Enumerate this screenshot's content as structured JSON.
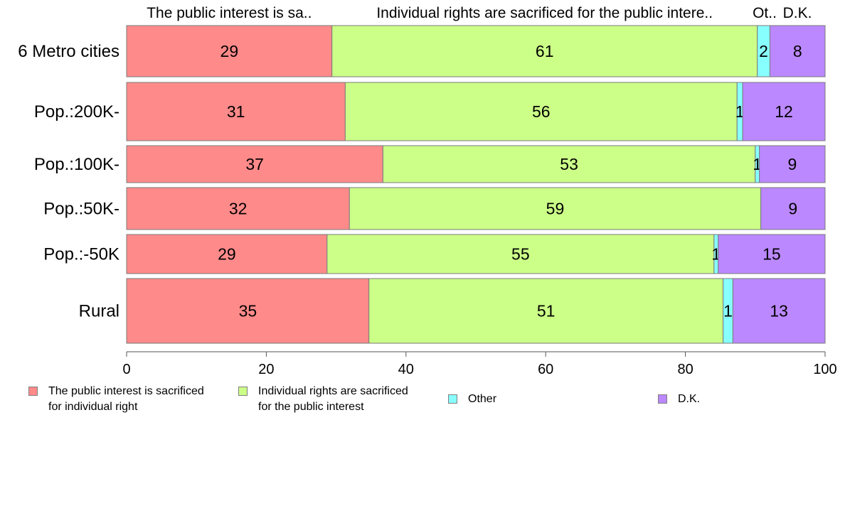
{
  "chart_data": {
    "type": "bar",
    "orientation": "horizontal",
    "stacked": true,
    "categories": [
      "6 Metro cities",
      "Pop.:200K-",
      "Pop.:100K-",
      "Pop.:50K-",
      "Pop.:-50K",
      "Rural"
    ],
    "series": [
      {
        "name": "The public interest is sacrificed for individual right",
        "header": "The public interest is sa..",
        "color": "#FF8A8A",
        "values": [
          29.4,
          31.3,
          36.7,
          31.9,
          28.7,
          34.7
        ],
        "labels": [
          "29",
          "31",
          "37",
          "32",
          "29",
          "35"
        ]
      },
      {
        "name": "Individual rights are sacrificed for the public interest",
        "header": "Individual rights are sacrificed for the public intere..",
        "color": "#CCFF88",
        "values": [
          60.9,
          56.1,
          53.3,
          58.9,
          55.4,
          50.7
        ],
        "labels": [
          "61",
          "56",
          "53",
          "59",
          "55",
          "51"
        ]
      },
      {
        "name": "Other",
        "header": "Ot..",
        "color": "#88FFFF",
        "values": [
          1.8,
          0.8,
          0.6,
          0.0,
          0.6,
          1.4
        ],
        "labels": [
          "2",
          "1",
          "1",
          "",
          "1",
          "1"
        ]
      },
      {
        "name": "D.K.",
        "header": "D.K.",
        "color": "#BB88FF",
        "values": [
          7.9,
          11.8,
          9.4,
          9.2,
          15.3,
          13.2
        ],
        "labels": [
          "8",
          "12",
          "9",
          "9",
          "15",
          "13"
        ]
      }
    ],
    "xlim": [
      0,
      100
    ],
    "xticks": [
      "0",
      "20",
      "40",
      "60",
      "80",
      "100"
    ],
    "grid": false,
    "legend_position": "bottom"
  },
  "legend": [
    {
      "label": "The public interest is sacrificed\nfor individual right",
      "color": "#FF8A8A"
    },
    {
      "label": "Individual rights are sacrificed\nfor the public interest",
      "color": "#CCFF88"
    },
    {
      "label": "Other",
      "color": "#88FFFF"
    },
    {
      "label": "D.K.",
      "color": "#BB88FF"
    }
  ]
}
